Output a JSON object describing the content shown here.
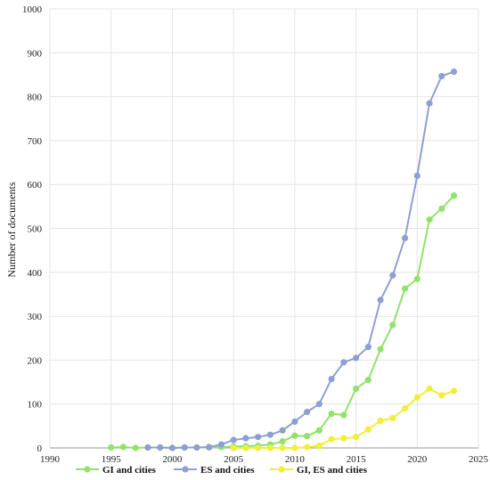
{
  "chart_data": {
    "type": "line",
    "title": "",
    "xlabel": "",
    "ylabel": "Number of documents",
    "xlim": [
      1990,
      2025
    ],
    "ylim": [
      0,
      1000
    ],
    "x_ticks": [
      "1990",
      "1995",
      "2000",
      "2005",
      "2010",
      "2015",
      "2020",
      "2025"
    ],
    "y_ticks": [
      "0",
      "100",
      "200",
      "300",
      "400",
      "500",
      "600",
      "700",
      "800",
      "900",
      "1000"
    ],
    "grid": true,
    "legend_position": "bottom",
    "series": [
      {
        "name": "GI and cities",
        "color": "#92E26C",
        "points": [
          [
            1995,
            1
          ],
          [
            1996,
            2
          ],
          [
            1997,
            0
          ],
          [
            1998,
            1
          ],
          [
            1999,
            1
          ],
          [
            2000,
            0
          ],
          [
            2001,
            1
          ],
          [
            2002,
            1
          ],
          [
            2003,
            1
          ],
          [
            2004,
            2
          ],
          [
            2005,
            3
          ],
          [
            2006,
            4
          ],
          [
            2007,
            5
          ],
          [
            2008,
            8
          ],
          [
            2009,
            15
          ],
          [
            2010,
            28
          ],
          [
            2011,
            27
          ],
          [
            2012,
            40
          ],
          [
            2013,
            78
          ],
          [
            2014,
            75
          ],
          [
            2015,
            135
          ],
          [
            2016,
            155
          ],
          [
            2017,
            225
          ],
          [
            2018,
            280
          ],
          [
            2019,
            363
          ],
          [
            2020,
            385
          ],
          [
            2021,
            520
          ],
          [
            2022,
            545
          ],
          [
            2023,
            575
          ]
        ]
      },
      {
        "name": "ES and cities",
        "color": "#8E9FD3",
        "points": [
          [
            1998,
            1
          ],
          [
            1999,
            1
          ],
          [
            2000,
            0
          ],
          [
            2001,
            1
          ],
          [
            2002,
            1
          ],
          [
            2003,
            2
          ],
          [
            2004,
            8
          ],
          [
            2005,
            18
          ],
          [
            2006,
            22
          ],
          [
            2007,
            25
          ],
          [
            2008,
            30
          ],
          [
            2009,
            40
          ],
          [
            2010,
            60
          ],
          [
            2011,
            82
          ],
          [
            2012,
            100
          ],
          [
            2013,
            157
          ],
          [
            2014,
            195
          ],
          [
            2015,
            205
          ],
          [
            2016,
            230
          ],
          [
            2017,
            337
          ],
          [
            2018,
            393
          ],
          [
            2019,
            478
          ],
          [
            2020,
            620
          ],
          [
            2021,
            785
          ],
          [
            2022,
            847
          ],
          [
            2023,
            857
          ]
        ]
      },
      {
        "name": "GI, ES and cities",
        "color": "#F2EE3C",
        "points": [
          [
            2005,
            0
          ],
          [
            2006,
            0
          ],
          [
            2007,
            0
          ],
          [
            2008,
            0
          ],
          [
            2009,
            0
          ],
          [
            2010,
            0
          ],
          [
            2011,
            2
          ],
          [
            2012,
            5
          ],
          [
            2013,
            20
          ],
          [
            2014,
            22
          ],
          [
            2015,
            25
          ],
          [
            2016,
            42
          ],
          [
            2017,
            62
          ],
          [
            2018,
            68
          ],
          [
            2019,
            90
          ],
          [
            2020,
            115
          ],
          [
            2021,
            135
          ],
          [
            2022,
            120
          ],
          [
            2023,
            130
          ]
        ]
      }
    ]
  }
}
